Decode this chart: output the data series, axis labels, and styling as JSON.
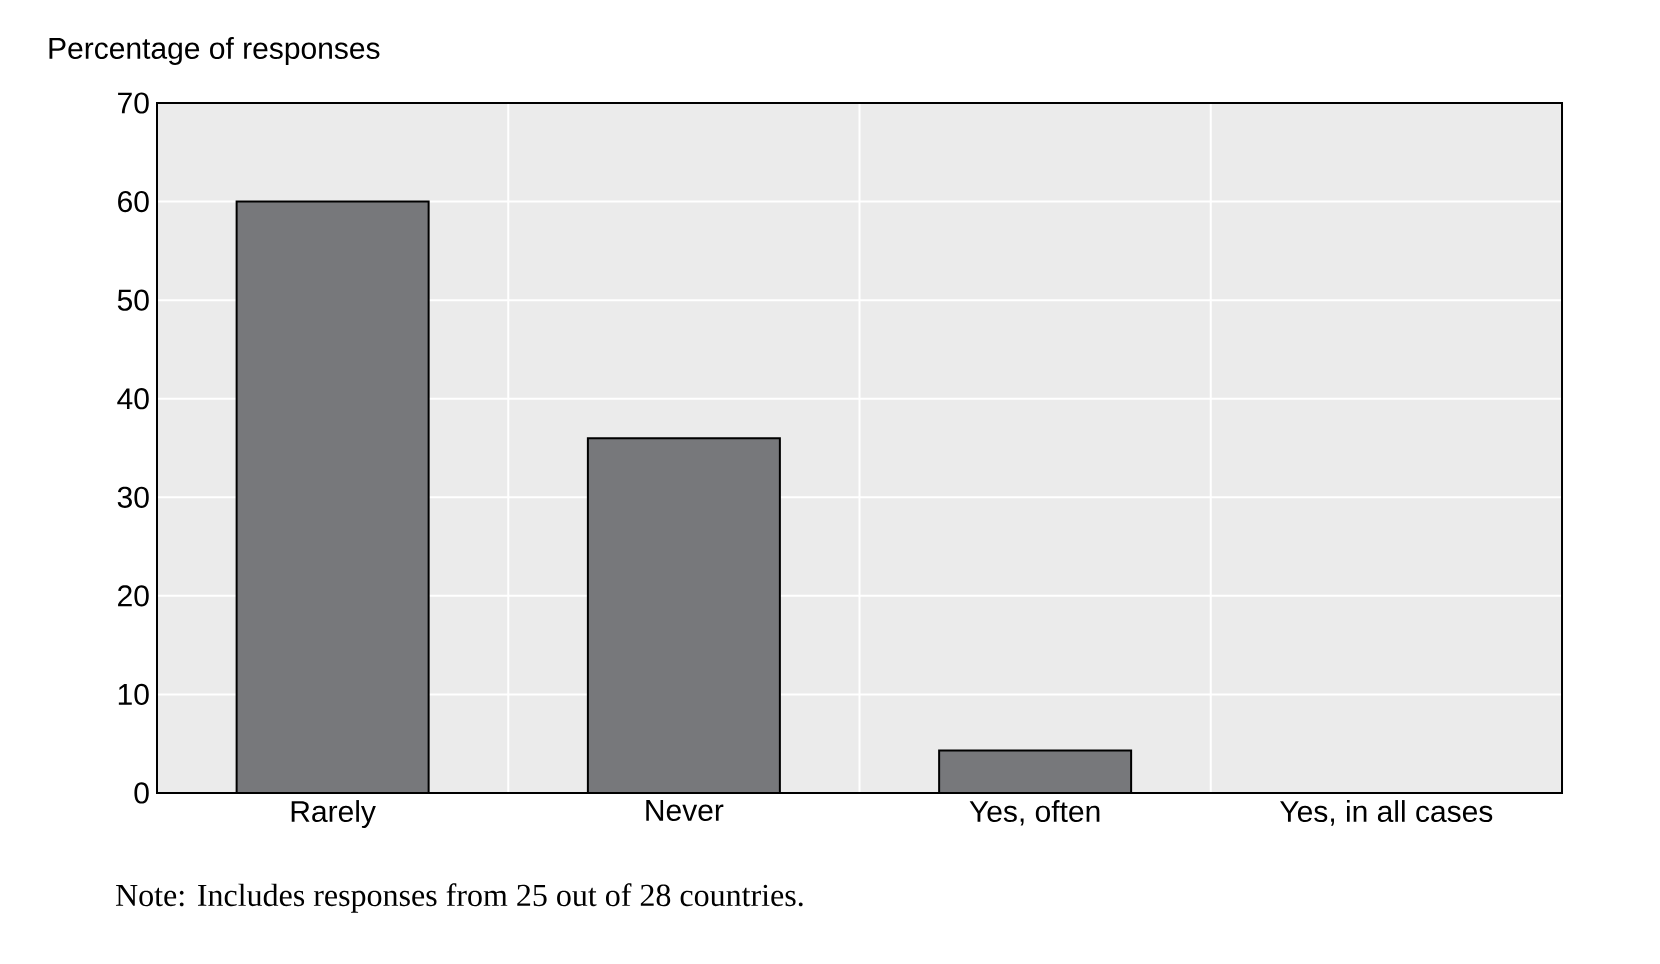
{
  "chart_data": {
    "type": "bar",
    "ylabel": "Percentage of responses",
    "categories": [
      "Rarely",
      "Never",
      "Yes, often",
      "Yes, in all cases"
    ],
    "values": [
      60,
      36,
      4.3,
      0
    ],
    "color": "#77787b",
    "ylim": [
      0,
      70
    ],
    "yticks": [
      0,
      10,
      20,
      30,
      40,
      50,
      60,
      70
    ],
    "grid": true,
    "annotations": [
      "Note: Includes responses from 25 out of 28 countries."
    ]
  }
}
